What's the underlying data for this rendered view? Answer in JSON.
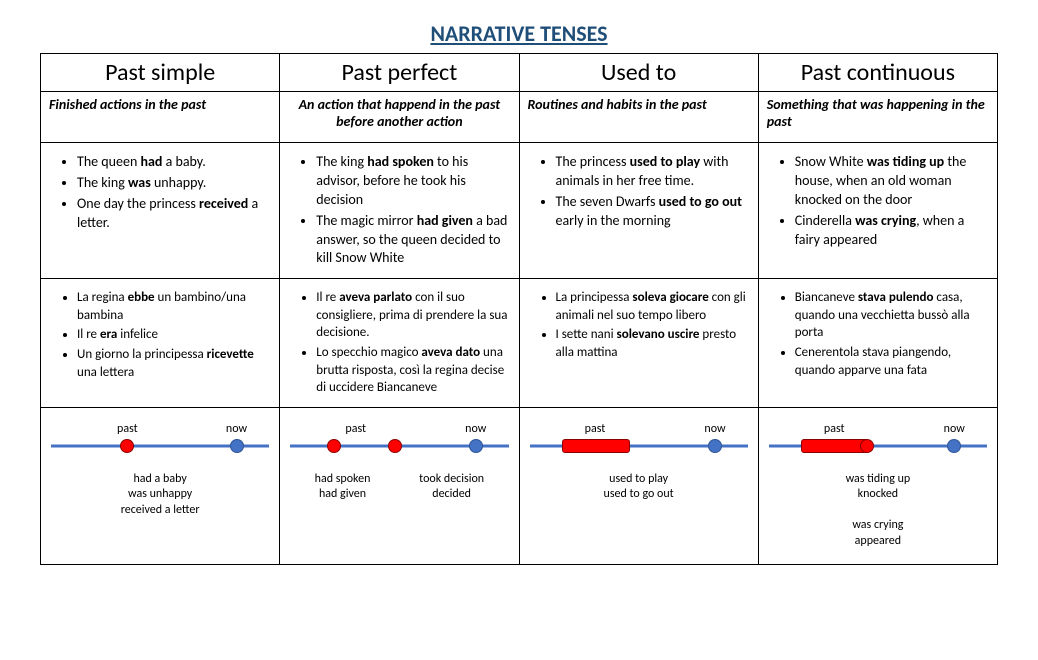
{
  "title": "NARRATIVE TENSES",
  "colors": {
    "title": "#1f4e79",
    "line": "#4472c4",
    "dot_red": "#ff0000",
    "dot_blue": "#4472c4",
    "border": "#000000"
  },
  "columns": [
    {
      "name": "Past simple",
      "desc": "Finished actions in the past",
      "en": [
        "The queen <b>had</b> a baby.",
        "The king <b>was</b> unhappy.",
        "One day the princess <b>received</b> a letter."
      ],
      "it": [
        "La regina <b>ebbe</b> un bambino/una bambina",
        "Il re <b>era</b> infelice",
        "Un giorno la principessa <b>ricevette</b> una lettera"
      ],
      "timeline": {
        "labels": [
          {
            "text": "past",
            "x": 35
          },
          {
            "text": "now",
            "x": 85
          }
        ],
        "dots": [
          {
            "type": "red",
            "x": 35
          },
          {
            "type": "blue",
            "x": 85
          }
        ],
        "caption_center": [
          "had a baby",
          "was unhappy",
          "received a letter"
        ]
      }
    },
    {
      "name": "Past perfect",
      "desc": "An action that happend in the past before another action",
      "en": [
        "The king <b>had spoken</b> to his advisor, before he took his decision",
        "The magic mirror <b>had given</b> a bad answer, so the queen decided to kill Snow White"
      ],
      "it": [
        "Il re <b>aveva parlato</b> con il suo consigliere, prima di prendere la sua decisione.",
        "Lo specchio magico <b>aveva dato</b> una brutta risposta, così la regina decise di uccidere Biancaneve"
      ],
      "timeline": {
        "labels": [
          {
            "text": "past",
            "x": 30
          },
          {
            "text": "now",
            "x": 85
          }
        ],
        "dots": [
          {
            "type": "red",
            "x": 20
          },
          {
            "type": "red",
            "x": 48
          },
          {
            "type": "blue",
            "x": 85
          }
        ],
        "caption_cols": [
          [
            "had spoken",
            "had given"
          ],
          [
            "took decision",
            "decided"
          ]
        ]
      }
    },
    {
      "name": "Used to",
      "desc": "Routines and habits in the past",
      "en": [
        "The princess <b>used to play</b> with animals in her free time.",
        "The seven Dwarfs <b>used to go out</b> early in the morning"
      ],
      "it": [
        "La principessa <b>soleva giocare</b> con gli animali nel suo tempo libero",
        "I sette nani <b>solevano uscire</b> presto alla mattina"
      ],
      "timeline": {
        "labels": [
          {
            "text": "past",
            "x": 30
          },
          {
            "text": "now",
            "x": 85
          }
        ],
        "bars": [
          {
            "x": 15,
            "w": 30
          }
        ],
        "dots": [
          {
            "type": "blue",
            "x": 85
          }
        ],
        "caption_center": [
          "used to play",
          "used to go out"
        ]
      }
    },
    {
      "name": "Past continuous",
      "desc": "Something that was happening in the past",
      "en": [
        "Snow White <b>was tiding up</b> the house, when an old woman knocked on the door",
        "Cinderella <b>was crying</b>, when a fairy appeared"
      ],
      "it": [
        "Biancaneve <b>stava pulendo</b> casa, quando una vecchietta bussò alla porta",
        "Cenerentola stava piangendo, quando apparve una fata"
      ],
      "timeline": {
        "labels": [
          {
            "text": "past",
            "x": 30
          },
          {
            "text": "now",
            "x": 85
          }
        ],
        "bars": [
          {
            "x": 15,
            "w": 30
          }
        ],
        "dots": [
          {
            "type": "red",
            "x": 45
          },
          {
            "type": "blue",
            "x": 85
          }
        ],
        "caption_center": [
          "was tiding up",
          "knocked",
          "",
          "was crying",
          "appeared"
        ]
      }
    }
  ]
}
